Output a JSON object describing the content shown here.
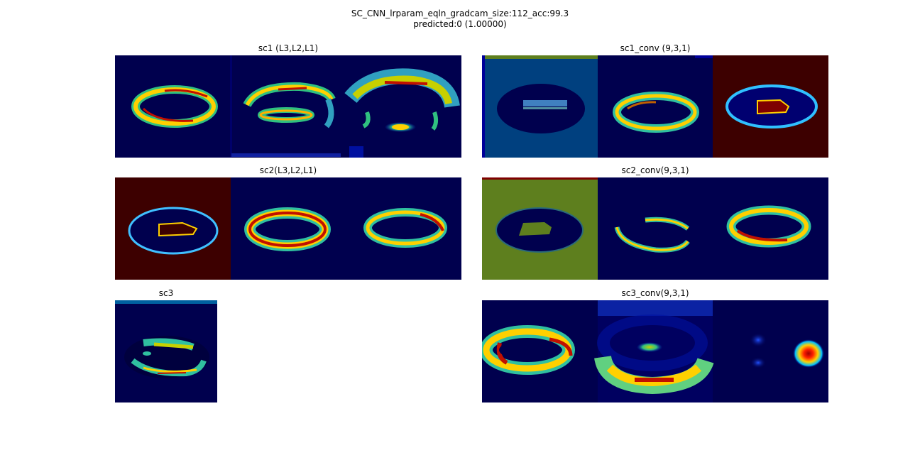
{
  "figure": {
    "title_line1": "SC_CNN_lrparam_eqln_gradcam_size:112_acc:99.3",
    "title_line2": "predicted:0 (1.00000)"
  },
  "panels": {
    "sc1": {
      "title": "sc1 (L3,L2,L1)"
    },
    "sc1_conv": {
      "title": "sc1_conv (9,3,1)"
    },
    "sc2": {
      "title": "sc2(L3,L2,L1)"
    },
    "sc2_conv": {
      "title": "sc2_conv(9,3,1)"
    },
    "sc3": {
      "title": "sc3"
    },
    "sc3_conv": {
      "title": "sc3_conv(9,3,1)"
    }
  },
  "colors": {
    "jet_dark_blue": "#00004e",
    "jet_dark_red": "#7f0000",
    "olive": "#5e7f1e",
    "steel_blue": "#00407f"
  }
}
